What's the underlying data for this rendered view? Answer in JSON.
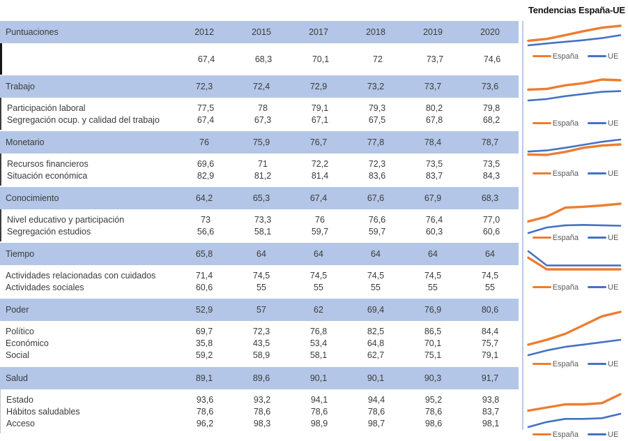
{
  "colors": {
    "espana_line": "#ED7D31",
    "ue_line": "#4472C4",
    "band": "#B4C6E7"
  },
  "right_panel": {
    "title": "Tendencias España-UE",
    "legend": {
      "espana": "España",
      "ue": "UE"
    }
  },
  "table": {
    "header": {
      "label": "Puntuaciones",
      "years": [
        "2012",
        "2015",
        "2017",
        "2018",
        "2019",
        "2020"
      ]
    },
    "overall": {
      "values": [
        "67,4",
        "68,3",
        "70,1",
        "72",
        "73,7",
        "74,6"
      ]
    },
    "domains": [
      {
        "name": "Trabajo",
        "values": [
          "72,3",
          "72,4",
          "72,9",
          "73,2",
          "73,7",
          "73,6"
        ],
        "subrows": [
          {
            "label": "Participación laboral",
            "values": [
              "77,5",
              "78",
              "79,1",
              "79,3",
              "80,2",
              "79,8"
            ]
          },
          {
            "label": "Segregación ocup. y calidad del trabajo",
            "values": [
              "67,4",
              "67,3",
              "67,1",
              "67,5",
              "67,8",
              "68,2"
            ]
          }
        ]
      },
      {
        "name": "Monetario",
        "values": [
          "76",
          "75,9",
          "76,7",
          "77,8",
          "78,4",
          "78,7"
        ],
        "subrows": [
          {
            "label": "Recursos financieros",
            "values": [
              "69,6",
              "71",
              "72,2",
              "72,3",
              "73,5",
              "73,5"
            ]
          },
          {
            "label": "Situación económica",
            "values": [
              "82,9",
              "81,2",
              "81,4",
              "83,6",
              "83,7",
              "84,3"
            ]
          }
        ]
      },
      {
        "name": "Conocimiento",
        "values": [
          "64,2",
          "65,3",
          "67,4",
          "67,6",
          "67,9",
          "68,3"
        ],
        "subrows": [
          {
            "label": "Nivel educativo y participación",
            "values": [
              "73",
              "73,3",
              "76",
              "76,6",
              "76,4",
              "77,0"
            ]
          },
          {
            "label": "Segregación estudios",
            "values": [
              "56,6",
              "58,1",
              "59,7",
              "59,7",
              "60,3",
              "60,6"
            ]
          }
        ]
      },
      {
        "name": "Tiempo",
        "values": [
          "65,8",
          "64",
          "64",
          "64",
          "64",
          "64"
        ],
        "subrows": [
          {
            "label": "Actividades relacionadas con cuidados",
            "values": [
              "71,4",
              "74,5",
              "74,5",
              "74,5",
              "74,5",
              "74,5"
            ]
          },
          {
            "label": "Actividades sociales",
            "values": [
              "60,6",
              "55",
              "55",
              "55",
              "55",
              "55"
            ]
          }
        ]
      },
      {
        "name": "Poder",
        "values": [
          "52,9",
          "57",
          "62",
          "69,4",
          "76,9",
          "80,6"
        ],
        "subrows": [
          {
            "label": "Político",
            "values": [
              "69,7",
              "72,3",
              "76,8",
              "82,5",
              "86,5",
              "84,4"
            ]
          },
          {
            "label": "Económico",
            "values": [
              "35,8",
              "43,5",
              "53,4",
              "64,8",
              "70,1",
              "75,7"
            ]
          },
          {
            "label": "Social",
            "values": [
              "59,2",
              "58,9",
              "58,1",
              "62,7",
              "75,1",
              "79,1"
            ]
          }
        ]
      },
      {
        "name": "Salud",
        "values": [
          "89,1",
          "89,6",
          "90,1",
          "90,1",
          "90,3",
          "91,7"
        ],
        "subrows": [
          {
            "label": "Estado",
            "values": [
              "93,6",
              "93,2",
              "94,1",
              "94,4",
              "95,2",
              "93,8"
            ]
          },
          {
            "label": "Hábitos saludables",
            "values": [
              "78,6",
              "78,6",
              "78,6",
              "78,6",
              "78,6",
              "83,7"
            ]
          },
          {
            "label": "Acceso",
            "values": [
              "96,2",
              "98,3",
              "98,9",
              "98,7",
              "98,6",
              "98,1"
            ]
          }
        ]
      }
    ]
  },
  "chart_data": [
    {
      "type": "line",
      "name": "Puntuaciones",
      "x": [
        2012,
        2015,
        2017,
        2018,
        2019,
        2020
      ],
      "series": [
        {
          "name": "España",
          "values": [
            67.4,
            68.3,
            70.1,
            72,
            73.7,
            74.6
          ]
        },
        {
          "name": "UE",
          "values": [
            65.2,
            66.1,
            66.9,
            67.7,
            68.7,
            70.1
          ]
        }
      ],
      "legend_position": "bottom",
      "grid": false
    },
    {
      "type": "line",
      "name": "Trabajo",
      "x": [
        2012,
        2015,
        2017,
        2018,
        2019,
        2020
      ],
      "series": [
        {
          "name": "España",
          "values": [
            72.3,
            72.4,
            72.9,
            73.2,
            73.7,
            73.6
          ]
        },
        {
          "name": "UE",
          "values": [
            70.8,
            71.0,
            71.4,
            71.7,
            72.0,
            72.1
          ]
        }
      ],
      "legend_position": "bottom",
      "grid": false
    },
    {
      "type": "line",
      "name": "Monetario",
      "x": [
        2012,
        2015,
        2017,
        2018,
        2019,
        2020
      ],
      "series": [
        {
          "name": "España",
          "values": [
            76,
            75.9,
            76.7,
            77.8,
            78.4,
            78.7
          ]
        },
        {
          "name": "UE",
          "values": [
            76.8,
            77.1,
            77.8,
            78.6,
            79.4,
            80.0
          ]
        }
      ],
      "legend_position": "bottom",
      "grid": false
    },
    {
      "type": "line",
      "name": "Conocimiento",
      "x": [
        2012,
        2015,
        2017,
        2018,
        2019,
        2020
      ],
      "series": [
        {
          "name": "España",
          "values": [
            64.2,
            65.3,
            67.4,
            67.6,
            67.9,
            68.3
          ]
        },
        {
          "name": "UE",
          "values": [
            61.5,
            62.8,
            63.3,
            63.4,
            63.3,
            63.2
          ]
        }
      ],
      "legend_position": "bottom",
      "grid": false
    },
    {
      "type": "line",
      "name": "Tiempo",
      "x": [
        2012,
        2015,
        2017,
        2018,
        2019,
        2020
      ],
      "series": [
        {
          "name": "España",
          "values": [
            65.8,
            64,
            64,
            64,
            64,
            64
          ]
        },
        {
          "name": "UE",
          "values": [
            66.8,
            64.6,
            64.6,
            64.6,
            64.6,
            64.6
          ]
        }
      ],
      "legend_position": "bottom",
      "grid": false
    },
    {
      "type": "line",
      "name": "Poder",
      "x": [
        2012,
        2015,
        2017,
        2018,
        2019,
        2020
      ],
      "series": [
        {
          "name": "España",
          "values": [
            52.9,
            57,
            62,
            69.4,
            76.9,
            80.6
          ]
        },
        {
          "name": "UE",
          "values": [
            44,
            48,
            51,
            53,
            55,
            57
          ]
        }
      ],
      "legend_position": "bottom",
      "grid": false
    },
    {
      "type": "line",
      "name": "Salud",
      "x": [
        2012,
        2015,
        2017,
        2018,
        2019,
        2020
      ],
      "series": [
        {
          "name": "España",
          "values": [
            89.1,
            89.6,
            90.1,
            90.1,
            90.3,
            91.7
          ]
        },
        {
          "name": "UE",
          "values": [
            86.5,
            87.3,
            87.8,
            87.8,
            87.9,
            88.6
          ]
        }
      ],
      "legend_position": "bottom",
      "grid": false
    }
  ]
}
